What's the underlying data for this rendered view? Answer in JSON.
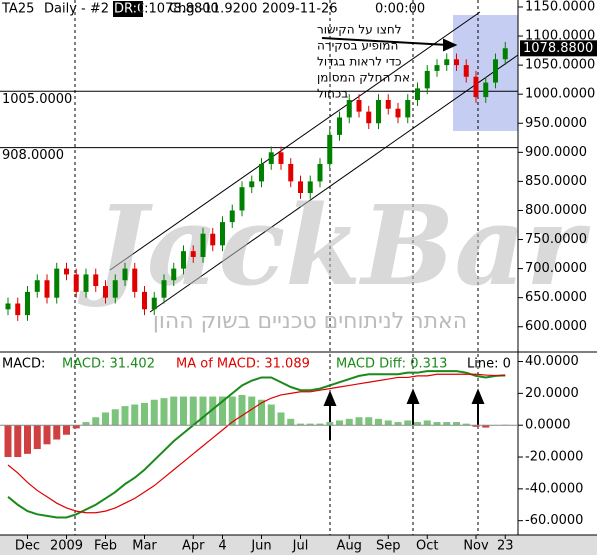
{
  "chart_data": [
    {
      "type": "candlestick",
      "header": [
        "TA25",
        "Daily - #2",
        "DR:0",
        "C:1078.8800",
        "Chg:-11.9200",
        "2009-11-26",
        "0:00:00"
      ],
      "categories": [
        null,
        null,
        "Dec",
        null,
        null,
        null,
        "2009",
        null,
        null,
        null,
        "Feb",
        null,
        null,
        null,
        "Mar",
        null,
        null,
        null,
        null,
        "Apr",
        null,
        null,
        "4",
        null,
        null,
        null,
        "Jun",
        null,
        null,
        null,
        "Jul",
        null,
        null,
        null,
        null,
        "Aug",
        null,
        null,
        null,
        "Sep",
        null,
        null,
        null,
        "Oct",
        null,
        null,
        null,
        null,
        "Nov",
        null,
        null,
        "23"
      ],
      "open": [
        630,
        640,
        620,
        660,
        680,
        650,
        700,
        690,
        660,
        690,
        670,
        650,
        680,
        700,
        660,
        630,
        650,
        680,
        700,
        730,
        720,
        760,
        740,
        780,
        800,
        840,
        850,
        880,
        900,
        880,
        850,
        830,
        850,
        880,
        930,
        960,
        990,
        970,
        950,
        990,
        975,
        960,
        990,
        1010,
        1040,
        1050,
        1060,
        1050,
        1030,
        995,
        1020,
        1060
      ],
      "high": [
        650,
        650,
        670,
        690,
        690,
        710,
        710,
        700,
        700,
        700,
        680,
        690,
        710,
        710,
        670,
        660,
        690,
        710,
        740,
        740,
        770,
        770,
        790,
        810,
        850,
        860,
        890,
        910,
        910,
        890,
        860,
        860,
        890,
        940,
        970,
        1000,
        1000,
        980,
        1000,
        1000,
        985,
        1000,
        1020,
        1050,
        1060,
        1070,
        1070,
        1060,
        1040,
        1030,
        1070,
        1090
      ],
      "low": [
        620,
        610,
        610,
        650,
        640,
        640,
        680,
        650,
        650,
        660,
        640,
        640,
        670,
        650,
        620,
        620,
        640,
        670,
        690,
        710,
        710,
        730,
        730,
        770,
        790,
        830,
        840,
        870,
        870,
        840,
        820,
        820,
        840,
        870,
        920,
        950,
        960,
        940,
        940,
        965,
        950,
        950,
        980,
        1000,
        1030,
        1040,
        1040,
        1020,
        985,
        985,
        1010,
        1050
      ],
      "close": [
        640,
        620,
        660,
        680,
        650,
        700,
        690,
        660,
        690,
        670,
        650,
        680,
        700,
        660,
        630,
        650,
        680,
        700,
        730,
        720,
        760,
        740,
        780,
        800,
        840,
        850,
        880,
        900,
        880,
        850,
        830,
        850,
        880,
        930,
        960,
        990,
        970,
        950,
        990,
        975,
        960,
        990,
        1010,
        1040,
        1050,
        1060,
        1050,
        1030,
        995,
        1020,
        1060,
        1079
      ],
      "up_color": "#008000",
      "down_color": "#e00000",
      "ylim": [
        560,
        1162
      ],
      "yticks": [
        {
          "value": 1150,
          "label": "1150.0000"
        },
        {
          "value": 1100,
          "label": "1100.0000"
        },
        {
          "value": 1050,
          "label": "1050.0000"
        },
        {
          "value": 1000,
          "label": "1000.0000"
        },
        {
          "value": 950,
          "label": "950.0000"
        },
        {
          "value": 900,
          "label": "900.0000"
        },
        {
          "value": 850,
          "label": "850.0000"
        },
        {
          "value": 800,
          "label": "800.0000"
        },
        {
          "value": 750,
          "label": "750.0000"
        },
        {
          "value": 700,
          "label": "700.0000"
        },
        {
          "value": 650,
          "label": "650.0000"
        },
        {
          "value": 600,
          "label": "600.0000"
        }
      ],
      "price_lines": [
        {
          "value": 1005,
          "label": "1005.0000"
        },
        {
          "value": 908,
          "label": "908.0000"
        }
      ],
      "last_price": {
        "value": 1078.88,
        "label": "1078.8800"
      },
      "callout": [
        "לחצו על הקישור",
        "המופיע בסקירה",
        "כדי לראות בגדול",
        "את החלק המסומן",
        "בכחול"
      ],
      "watermark": "JackBar",
      "watermark_subtitle": "האתר לניתוחים טכניים בשוק ההון"
    },
    {
      "type": "macd",
      "title": "MACD:",
      "legend": [
        "MACD: 31.402",
        "MA of MACD: 31.089",
        "MACD Diff: 0.313",
        "Line: 0"
      ],
      "series": [
        {
          "name": "MACD",
          "color": "#1a8a1a",
          "values": [
            -45,
            -50,
            -54,
            -56,
            -57,
            -58,
            -58,
            -56,
            -53,
            -50,
            -46,
            -42,
            -37,
            -33,
            -28,
            -22,
            -16,
            -10,
            -5,
            0,
            5,
            10,
            15,
            20,
            25,
            28,
            30,
            30,
            27,
            24,
            22,
            22,
            23,
            25,
            27,
            29,
            31,
            32,
            32,
            32,
            32,
            33,
            33,
            34,
            34,
            34,
            34,
            33,
            31,
            30,
            31,
            31.402
          ]
        },
        {
          "name": "MA of MACD",
          "color": "#e00000",
          "values": [
            -25,
            -30,
            -36,
            -41,
            -45,
            -49,
            -52,
            -54,
            -55,
            -55,
            -54,
            -52,
            -49,
            -46,
            -42,
            -38,
            -33,
            -28,
            -23,
            -18,
            -13,
            -8,
            -3,
            2,
            6,
            10,
            14,
            17,
            19,
            20,
            21,
            21,
            22,
            23,
            24,
            25,
            26,
            27,
            28,
            29,
            30,
            30,
            31,
            31,
            32,
            32,
            32,
            32,
            32,
            31.5,
            31.2,
            31.089
          ]
        },
        {
          "name": "MACD Diff",
          "color": "#7cc47c",
          "negative_color": "#d04040",
          "values": [
            -20,
            -20,
            -18,
            -15,
            -12,
            -9,
            -6,
            -2,
            2,
            5,
            8,
            10,
            12,
            13,
            14,
            16,
            17,
            18,
            18,
            18,
            18,
            18,
            18,
            18,
            19,
            18,
            16,
            13,
            8,
            4,
            1,
            1,
            1,
            2,
            3,
            4,
            5,
            5,
            4,
            3,
            2,
            3,
            2,
            3,
            2,
            2,
            2,
            1,
            -1,
            -1.5,
            -0.2,
            0.313
          ]
        }
      ],
      "ylim": [
        -69,
        46
      ],
      "yticks": [
        {
          "value": 40,
          "label": "40.0000"
        },
        {
          "value": 20,
          "label": "20.0000"
        },
        {
          "value": 0,
          "label": "0.0000"
        },
        {
          "value": -20,
          "label": "-20.0000"
        },
        {
          "value": -40,
          "label": "-40.0000"
        },
        {
          "value": -60,
          "label": "-60.0000"
        }
      ]
    }
  ]
}
